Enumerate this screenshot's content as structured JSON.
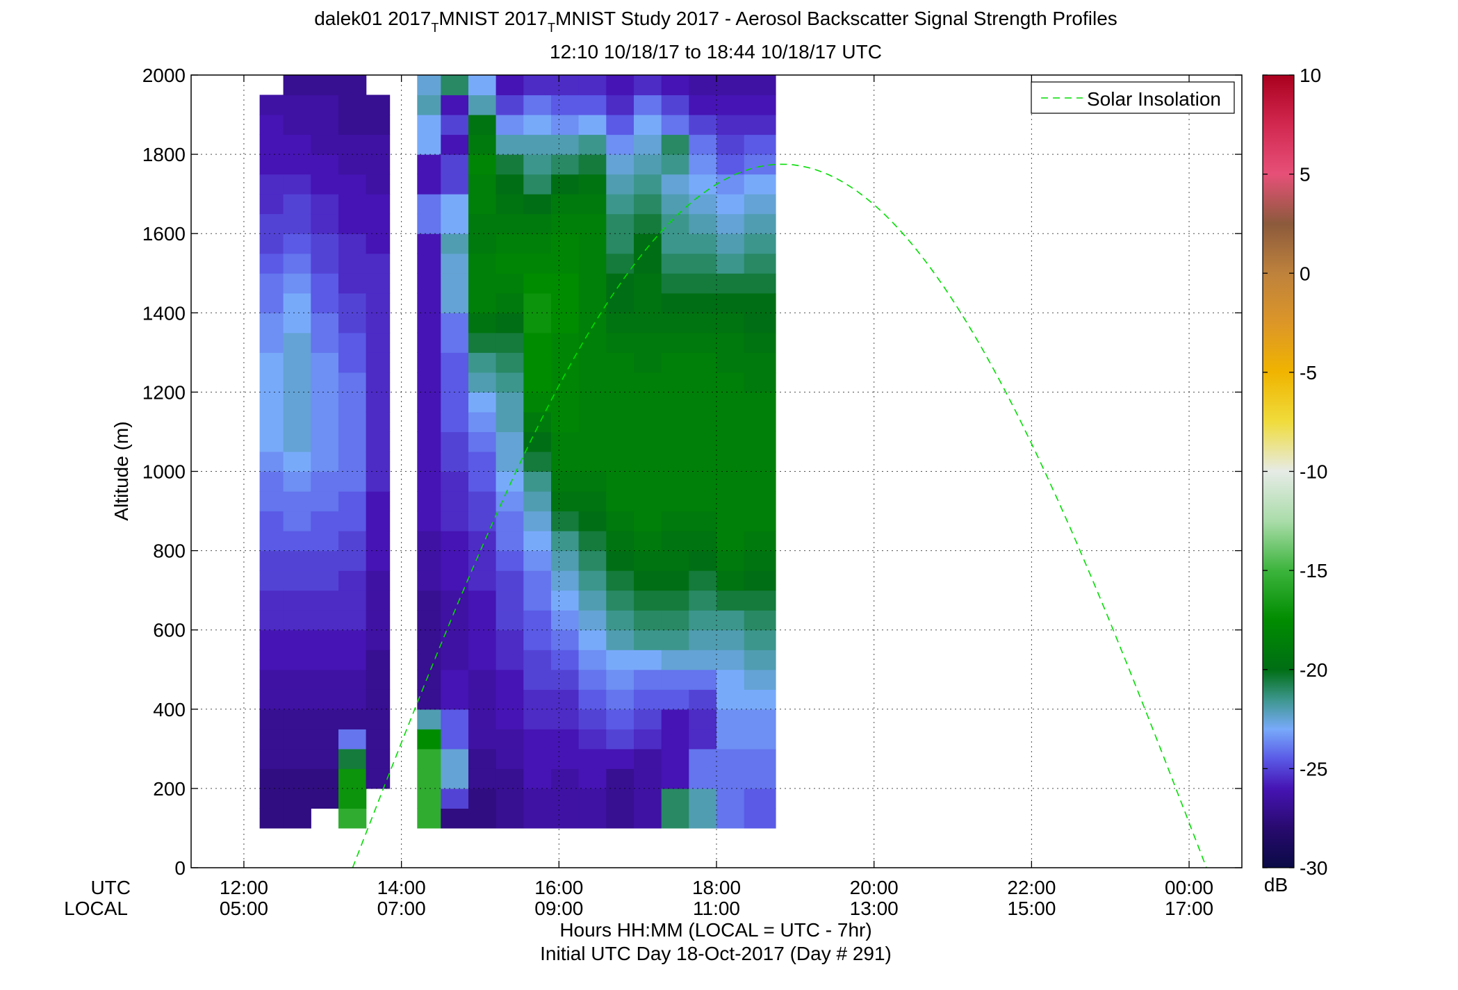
{
  "chart_data": {
    "type": "heatmap",
    "title_line1_prefix": "dalek01 2017",
    "title_sub1": "T",
    "title_line1_mid": "MNIST 2017",
    "title_sub2": "T",
    "title_line1_suffix": "MNIST Study 2017 - Aerosol Backscatter Signal Strength Profiles",
    "title_line2": "12:10 10/18/17 to 18:44 10/18/17  UTC",
    "ylabel": "Altitude (m)",
    "xlabel": "Hours HH:MM  (LOCAL = UTC - 7hr)",
    "xlabel2": "Initial UTC Day 18-Oct-2017 (Day # 291)",
    "x_row_label_utc": "UTC",
    "x_row_label_local": "LOCAL",
    "xlim_hours": [
      11.33,
      24.67
    ],
    "ylim": [
      0,
      2000
    ],
    "x_ticks": [
      {
        "h": 12,
        "utc": "12:00",
        "local": "05:00"
      },
      {
        "h": 14,
        "utc": "14:00",
        "local": "07:00"
      },
      {
        "h": 16,
        "utc": "16:00",
        "local": "09:00"
      },
      {
        "h": 18,
        "utc": "18:00",
        "local": "11:00"
      },
      {
        "h": 20,
        "utc": "20:00",
        "local": "13:00"
      },
      {
        "h": 22,
        "utc": "22:00",
        "local": "15:00"
      },
      {
        "h": 24,
        "utc": "00:00",
        "local": "17:00"
      }
    ],
    "y_ticks": [
      "0",
      "200",
      "400",
      "600",
      "800",
      "1000",
      "1200",
      "1400",
      "1600",
      "1800",
      "2000"
    ],
    "legend": {
      "label": "Solar Insolation",
      "position": "top-right",
      "color": "#00dd00"
    },
    "solar_insolation": {
      "start_hour": 13.38,
      "peak_hour": 18.83,
      "peak_altitude": 1775,
      "end_hour": 24.22
    },
    "colorbar": {
      "label": "dB",
      "min": -30,
      "max": 10,
      "ticks": [
        "10",
        "5",
        "0",
        "-5",
        "-10",
        "-15",
        "-20",
        "-25",
        "-30"
      ]
    },
    "grid": true,
    "altitude_bins": [
      100,
      150,
      200,
      250,
      300,
      350,
      400,
      450,
      500,
      550,
      600,
      650,
      700,
      750,
      800,
      850,
      900,
      950,
      1000,
      1050,
      1100,
      1150,
      1200,
      1250,
      1300,
      1350,
      1400,
      1450,
      1500,
      1550,
      1600,
      1650,
      1700,
      1750,
      1800,
      1850,
      1900,
      1950,
      2000
    ],
    "profiles": [
      {
        "start": 12.2,
        "end": 12.5,
        "top": 1950,
        "values": [
          -27.5,
          -27.5,
          -27.5,
          -27,
          -27,
          -27,
          -26.5,
          -26.5,
          -26,
          -26,
          -25.5,
          -25.5,
          -25,
          -25,
          -24.5,
          -24.5,
          -24,
          -24,
          -23.5,
          -23,
          -23,
          -23,
          -23,
          -23,
          -23.5,
          -23.5,
          -24,
          -24,
          -24.5,
          -25,
          -25,
          -25.5,
          -25.5,
          -26,
          -26,
          -26,
          -26.5,
          -26.5
        ]
      },
      {
        "start": 12.5,
        "end": 12.85,
        "values": [
          -27.5,
          -27.5,
          -27.5,
          -27,
          -27,
          -27,
          -26.5,
          -26.5,
          -26,
          -26,
          -25.5,
          -25.5,
          -25,
          -25,
          -24.5,
          -24,
          -24,
          -23.5,
          -23,
          -22.5,
          -22.5,
          -22.5,
          -22.5,
          -22.5,
          -22.5,
          -23,
          -23,
          -23.5,
          -24,
          -24.5,
          -25,
          -25,
          -25.5,
          -26,
          -26,
          -26.5,
          -26.5,
          -27,
          -27
        ]
      },
      {
        "start": 12.85,
        "end": 13.2,
        "values": [
          null,
          -27.5,
          -27.5,
          -27,
          -27,
          -27,
          -26.5,
          -26.5,
          -26,
          -26,
          -25.5,
          -25.5,
          -25,
          -25,
          -24.5,
          -24.5,
          -24,
          -24,
          -23.5,
          -23.5,
          -23.5,
          -23.5,
          -23.5,
          -23.5,
          -24,
          -24,
          -24.5,
          -24.5,
          -25,
          -25,
          -25.5,
          -25.5,
          -26,
          -26,
          -26.5,
          -26.5,
          -26.5,
          -27,
          -27
        ]
      },
      {
        "start": 13.2,
        "end": 13.55,
        "values": [
          -15.5,
          -17,
          -17,
          -20.5,
          -24,
          -27,
          -26.5,
          -26.5,
          -26,
          -26,
          -25.5,
          -25.5,
          -25.5,
          -25,
          -25,
          -24.5,
          -24.5,
          -24,
          -24,
          -24,
          -24,
          -24,
          -24,
          -24.5,
          -24.5,
          -25,
          -25,
          -25.5,
          -25.5,
          -25.5,
          -26,
          -26,
          -26,
          -26.5,
          -26.5,
          -27,
          -27,
          -27,
          -27
        ]
      },
      {
        "start": 13.55,
        "end": 13.85,
        "top": 1950,
        "values": [
          null,
          null,
          -27,
          -27,
          -27,
          -27,
          -27,
          -27,
          -27,
          -26.5,
          -26.5,
          -26.5,
          -26.5,
          -26,
          -26,
          -26,
          -26,
          -25.5,
          -25.5,
          -25.5,
          -25.5,
          -25.5,
          -25.5,
          -25.5,
          -25.5,
          -25.5,
          -25.5,
          -25.5,
          -25.5,
          -26,
          -26,
          -26,
          -26.5,
          -26.5,
          -26.5,
          -27,
          -27,
          -27
        ]
      },
      {
        "start": 14.2,
        "end": 14.5,
        "values": [
          -15.5,
          -15.5,
          -15.5,
          -15.5,
          -17.5,
          -22,
          -27,
          -27,
          -27,
          -27,
          -27,
          -27,
          -26.5,
          -26.5,
          -26.5,
          -26,
          -26,
          -26,
          -26,
          -26,
          -26,
          -26,
          -26,
          -26,
          -26,
          -26,
          -26,
          -26,
          -26,
          -26,
          -24,
          -24,
          -26,
          -26,
          -23,
          -23,
          -22,
          -22.5,
          -22.5
        ]
      },
      {
        "start": 14.5,
        "end": 14.85,
        "values": [
          -27.5,
          -25,
          -22.5,
          -22.5,
          -24.5,
          -24.5,
          -26,
          -26,
          -26.5,
          -26.5,
          -26.5,
          -26.5,
          -26,
          -26,
          -26,
          -25.5,
          -25.5,
          -25.5,
          -25,
          -25,
          -24.5,
          -24.5,
          -24.5,
          -24.5,
          -24,
          -24,
          -22.5,
          -22.5,
          -22.5,
          -22,
          -23,
          -23,
          -25,
          -25,
          -26,
          -25,
          -26,
          -21,
          -21
        ]
      },
      {
        "start": 14.85,
        "end": 15.2,
        "values": [
          -27.5,
          -27.5,
          -27,
          -27,
          -26.5,
          -26.5,
          -26.5,
          -26.5,
          -26,
          -26,
          -26,
          -26,
          -25.5,
          -25.5,
          -25.5,
          -25,
          -25,
          -24.5,
          -24.5,
          -24,
          -23.5,
          -23,
          -22,
          -21.5,
          -20.5,
          -19.5,
          -18.5,
          -18.5,
          -18.5,
          -19,
          -19,
          -18.5,
          -18.5,
          -18,
          -19,
          -19.5,
          -22,
          -23,
          -23
        ]
      },
      {
        "start": 15.2,
        "end": 15.55,
        "values": [
          -27,
          -27,
          -27,
          -26.5,
          -26.5,
          -26,
          -26,
          -26,
          -25.5,
          -25.5,
          -25,
          -25,
          -25,
          -24.5,
          -24,
          -24,
          -23.5,
          -23,
          -22.5,
          -22.5,
          -22,
          -22,
          -21.5,
          -21,
          -20.5,
          -20,
          -19,
          -18.5,
          -18,
          -18.5,
          -19,
          -19.5,
          -20,
          -20.5,
          -22,
          -23.5,
          -25,
          -26,
          -26
        ]
      },
      {
        "start": 15.55,
        "end": 15.9,
        "values": [
          -26.5,
          -26.5,
          -26,
          -26,
          -26,
          -25.5,
          -25.5,
          -25,
          -25,
          -24.5,
          -24.5,
          -24,
          -24,
          -23.5,
          -23,
          -22.5,
          -22,
          -21.5,
          -20.5,
          -20,
          -19,
          -18,
          -17.5,
          -17.5,
          -17.5,
          -17,
          -17,
          -17.5,
          -18,
          -18.5,
          -19,
          -20,
          -21,
          -21.5,
          -22,
          -23,
          -24,
          -25.5,
          -25.5
        ]
      },
      {
        "start": 15.9,
        "end": 16.25,
        "values": [
          -26.5,
          -26.5,
          -26.5,
          -26,
          -26,
          -25.5,
          -25.5,
          -25,
          -24.5,
          -24,
          -23.5,
          -23,
          -22.5,
          -22,
          -21.5,
          -20.5,
          -19.5,
          -19,
          -18.5,
          -18.5,
          -18,
          -18,
          -18,
          -18,
          -18,
          -17.5,
          -17.5,
          -17.5,
          -18,
          -18,
          -18.5,
          -19,
          -20,
          -21,
          -22,
          -23.5,
          -24.5,
          -25.5,
          -25.5
        ]
      },
      {
        "start": 16.25,
        "end": 16.6,
        "values": [
          -26.5,
          -26.5,
          -26,
          -26,
          -25.5,
          -25,
          -24.5,
          -24,
          -23.5,
          -23,
          -22.5,
          -22,
          -21.5,
          -21,
          -20.5,
          -20,
          -19.5,
          -19,
          -18.5,
          -18.5,
          -18.5,
          -18.5,
          -18.5,
          -18.5,
          -18.5,
          -18.5,
          -18.5,
          -18.5,
          -18.5,
          -18.5,
          -18.5,
          -19,
          -19.5,
          -20.5,
          -21.5,
          -23,
          -24.5,
          -25.5,
          -25.5
        ]
      },
      {
        "start": 16.6,
        "end": 16.95,
        "values": [
          -27,
          -27,
          -27,
          -26,
          -25,
          -24.5,
          -24,
          -23.5,
          -23,
          -22,
          -21.5,
          -21,
          -20.5,
          -20,
          -19.5,
          -19,
          -18.5,
          -18.5,
          -18.5,
          -18.5,
          -18.5,
          -18.5,
          -18.5,
          -18.5,
          -19,
          -19.5,
          -20,
          -20,
          -20.5,
          -21,
          -21,
          -21.5,
          -22,
          -22.5,
          -23.5,
          -24.5,
          -25.5,
          -26,
          -26
        ]
      },
      {
        "start": 16.95,
        "end": 17.3,
        "values": [
          -26.5,
          -26.5,
          -26.5,
          -26.5,
          -25.5,
          -25,
          -24.5,
          -24,
          -23,
          -21.5,
          -21,
          -20.5,
          -20,
          -19.5,
          -19,
          -18.5,
          -18.5,
          -18.5,
          -18.5,
          -18.5,
          -18.5,
          -18.5,
          -18.5,
          -19,
          -19,
          -19.5,
          -19.5,
          -19.5,
          -20,
          -20,
          -20.5,
          -21,
          -21.5,
          -22,
          -22.5,
          -23,
          -24,
          -25.5,
          -25.5
        ]
      },
      {
        "start": 17.3,
        "end": 17.65,
        "values": [
          -21,
          -21,
          -26,
          -26,
          -26,
          -26,
          -24.5,
          -24,
          -22.5,
          -21.5,
          -21,
          -20.5,
          -20,
          -19.5,
          -19.5,
          -19,
          -18.5,
          -18.5,
          -18.5,
          -18.5,
          -18.5,
          -18.5,
          -18.5,
          -18.5,
          -19,
          -19.5,
          -20,
          -20.5,
          -21,
          -21.5,
          -21.5,
          -22,
          -22.5,
          -21.5,
          -21,
          -24,
          -25,
          -26,
          -26
        ]
      },
      {
        "start": 17.65,
        "end": 18.0,
        "values": [
          -22,
          -22,
          -24,
          -24,
          -25.5,
          -25.5,
          -25,
          -24,
          -22.5,
          -22,
          -21.5,
          -21,
          -20.5,
          -20,
          -19.5,
          -19,
          -18.5,
          -18.5,
          -18.5,
          -18.5,
          -18.5,
          -18.5,
          -18.5,
          -18.5,
          -19,
          -19.5,
          -20,
          -20.5,
          -21,
          -21.5,
          -22,
          -22.5,
          -23,
          -23.5,
          -24,
          -25,
          -26,
          -26.5,
          -26.5
        ]
      },
      {
        "start": 18.0,
        "end": 18.35,
        "values": [
          -24,
          -24,
          -24,
          -24,
          -23.5,
          -23.5,
          -23,
          -23,
          -22.5,
          -22,
          -21.5,
          -20.5,
          -19.5,
          -19,
          -18.5,
          -18.5,
          -18.5,
          -18.5,
          -18.5,
          -18.5,
          -18.5,
          -18.5,
          -18.5,
          -19,
          -19,
          -19.5,
          -20,
          -20.5,
          -21.5,
          -22,
          -22.5,
          -23,
          -23.5,
          -24.5,
          -25,
          -25.5,
          -26,
          -26.5,
          -26.5
        ]
      },
      {
        "start": 18.35,
        "end": 18.75,
        "values": [
          -24.5,
          -24.5,
          -24,
          -24,
          -23.5,
          -23.5,
          -23,
          -22.5,
          -22,
          -21.5,
          -21,
          -20.5,
          -20,
          -19.5,
          -19,
          -18.5,
          -18.5,
          -18.5,
          -18.5,
          -18.5,
          -18.5,
          -18.5,
          -19,
          -19,
          -19.5,
          -20,
          -20,
          -20.5,
          -21,
          -21.5,
          -22,
          -22.5,
          -23,
          -24,
          -24.5,
          -25.5,
          -26,
          -26.5,
          -26.5
        ]
      }
    ]
  }
}
